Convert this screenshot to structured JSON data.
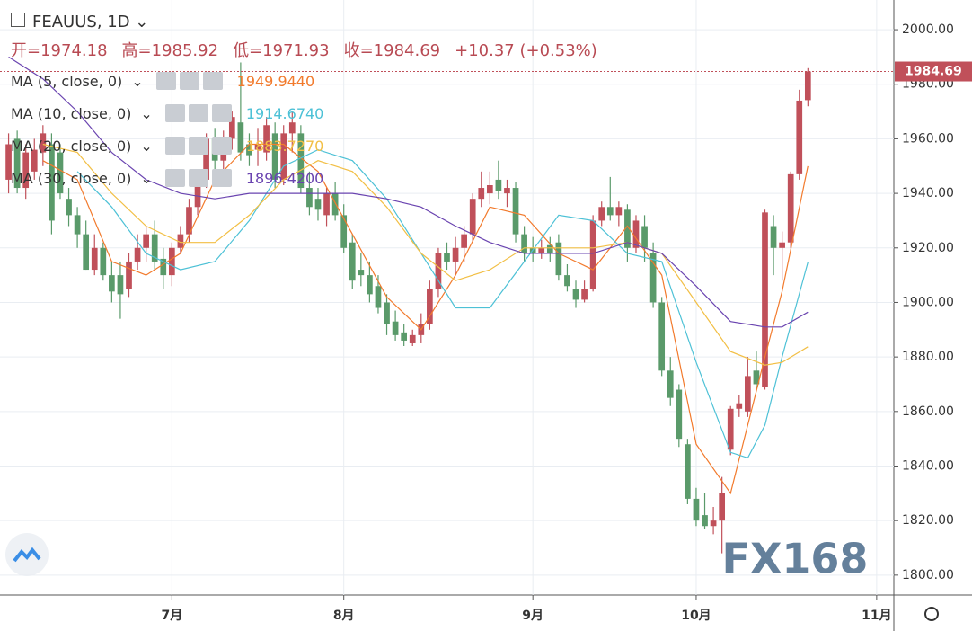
{
  "header": {
    "symbol": "FEAUUS, 1D",
    "ohlc": [
      "开=1974.18",
      "高=1985.92",
      "低=1971.93",
      "收=1984.69",
      "+10.37 (+0.53%)"
    ]
  },
  "watermark": "FX168",
  "chart_data": {
    "type": "candlestick",
    "open": [
      1945,
      1960,
      1942,
      1948,
      1955,
      1958,
      1955,
      1938,
      1932,
      1925,
      1912,
      1920,
      1910,
      1910,
      1905,
      1915,
      1920,
      1925,
      1916,
      1910,
      1920,
      1925,
      1935,
      1945,
      1960,
      1952,
      1960,
      1966,
      1958,
      1956,
      1955,
      1962,
      1945,
      1962,
      1962,
      1942,
      1938,
      1932,
      1940,
      1932,
      1922,
      1912,
      1910,
      1906,
      1900,
      1893,
      1889,
      1885,
      1888,
      1892,
      1905,
      1918,
      1915,
      1920,
      1925,
      1938,
      1940,
      1945,
      1940,
      1942,
      1925,
      1920,
      1918,
      1921,
      1922,
      1910,
      1905,
      1901,
      1905,
      1930,
      1935,
      1932,
      1934,
      1920,
      1928,
      1918,
      1900,
      1875,
      1868,
      1848,
      1828,
      1822,
      1818,
      1820,
      1846,
      1861,
      1860,
      1875,
      1869,
      1928,
      1920,
      1922,
      1947,
      1974.18
    ],
    "high": [
      1962,
      1963,
      1958,
      1960,
      1965,
      1962,
      1958,
      1942,
      1935,
      1930,
      1925,
      1922,
      1915,
      1915,
      1918,
      1925,
      1928,
      1930,
      1920,
      1922,
      1928,
      1938,
      1948,
      1962,
      1964,
      1963,
      1970,
      1988,
      1962,
      1964,
      1968,
      1966,
      1965,
      1970,
      1965,
      1948,
      1942,
      1942,
      1944,
      1936,
      1925,
      1918,
      1915,
      1910,
      1903,
      1897,
      1892,
      1890,
      1896,
      1908,
      1920,
      1922,
      1924,
      1928,
      1940,
      1948,
      1948,
      1952,
      1945,
      1944,
      1928,
      1924,
      1923,
      1924,
      1925,
      1914,
      1908,
      1908,
      1932,
      1937,
      1946,
      1937,
      1936,
      1932,
      1932,
      1922,
      1902,
      1880,
      1870,
      1850,
      1832,
      1830,
      1825,
      1836,
      1862,
      1866,
      1880,
      1882,
      1934,
      1932,
      1926,
      1948,
      1978,
      1985.92
    ],
    "low": [
      1940,
      1940,
      1938,
      1945,
      1950,
      1925,
      1938,
      1928,
      1920,
      1912,
      1910,
      1908,
      1900,
      1894,
      1902,
      1912,
      1915,
      1912,
      1905,
      1906,
      1918,
      1922,
      1932,
      1942,
      1948,
      1948,
      1956,
      1952,
      1950,
      1950,
      1952,
      1942,
      1943,
      1955,
      1940,
      1932,
      1930,
      1928,
      1930,
      1918,
      1905,
      1906,
      1900,
      1896,
      1888,
      1886,
      1884,
      1884,
      1885,
      1890,
      1902,
      1912,
      1910,
      1915,
      1922,
      1935,
      1936,
      1938,
      1935,
      1922,
      1915,
      1915,
      1916,
      1915,
      1908,
      1904,
      1898,
      1900,
      1904,
      1928,
      1930,
      1928,
      1915,
      1918,
      1915,
      1898,
      1873,
      1862,
      1847,
      1826,
      1818,
      1817,
      1815,
      1808,
      1844,
      1858,
      1858,
      1868,
      1868,
      1910,
      1908,
      1920,
      1945,
      1971.93
    ],
    "close": [
      1958,
      1942,
      1955,
      1956,
      1962,
      1930,
      1940,
      1932,
      1925,
      1912,
      1920,
      1910,
      1904,
      1903,
      1915,
      1920,
      1925,
      1915,
      1910,
      1920,
      1925,
      1935,
      1945,
      1960,
      1952,
      1960,
      1968,
      1955,
      1954,
      1958,
      1965,
      1945,
      1962,
      1966,
      1942,
      1935,
      1934,
      1940,
      1932,
      1920,
      1908,
      1910,
      1903,
      1898,
      1892,
      1888,
      1886,
      1888,
      1892,
      1905,
      1918,
      1915,
      1920,
      1925,
      1938,
      1942,
      1943,
      1941,
      1942,
      1925,
      1918,
      1918,
      1920,
      1918,
      1910,
      1906,
      1901,
      1905,
      1930,
      1935,
      1932,
      1935,
      1920,
      1930,
      1920,
      1900,
      1875,
      1865,
      1850,
      1828,
      1820,
      1818,
      1820,
      1830,
      1861,
      1863,
      1873,
      1870,
      1933,
      1920,
      1922,
      1947,
      1974,
      1984.69
    ],
    "up_color": "#c0505a",
    "down_color": "#5a9a6a",
    "last_price": 1984.69,
    "ma": [
      {
        "name": "MA (5, close, 0)",
        "color": "#f27a2c",
        "last_label": "1949.9440",
        "x": [
          4,
          8,
          12,
          16,
          20,
          24,
          28,
          32,
          36,
          40,
          44,
          48,
          52,
          56,
          60,
          64,
          68,
          72,
          76,
          80,
          84,
          88,
          90,
          93
        ],
        "values": [
          1952,
          1945,
          1915,
          1910,
          1918,
          1945,
          1958,
          1958,
          1948,
          1925,
          1902,
          1890,
          1910,
          1935,
          1932,
          1918,
          1912,
          1928,
          1910,
          1848,
          1830,
          1880,
          1904,
          1949.944
        ]
      },
      {
        "name": "MA (10, close, 0)",
        "color": "#4dc1d6",
        "last_label": "1914.6740",
        "x": [
          8,
          12,
          16,
          20,
          24,
          28,
          32,
          36,
          40,
          44,
          48,
          52,
          56,
          60,
          64,
          68,
          72,
          76,
          80,
          84,
          86,
          88,
          90,
          93
        ],
        "values": [
          1948,
          1935,
          1918,
          1912,
          1915,
          1930,
          1950,
          1956,
          1952,
          1938,
          1918,
          1898,
          1898,
          1915,
          1932,
          1930,
          1918,
          1915,
          1878,
          1845,
          1843,
          1855,
          1880,
          1914.674
        ]
      },
      {
        "name": "MA (20, close, 0)",
        "color": "#f2bf45",
        "last_label": "1883.7270",
        "x": [
          4,
          8,
          12,
          16,
          20,
          24,
          28,
          32,
          36,
          40,
          44,
          48,
          52,
          56,
          60,
          64,
          68,
          72,
          76,
          80,
          84,
          88,
          90,
          93
        ],
        "values": [
          1958,
          1955,
          1940,
          1928,
          1922,
          1922,
          1932,
          1945,
          1952,
          1948,
          1935,
          1918,
          1908,
          1912,
          1920,
          1920,
          1920,
          1922,
          1918,
          1900,
          1882,
          1877,
          1878,
          1883.727
        ]
      },
      {
        "name": "MA (30, close, 0)",
        "color": "#6a44b0",
        "last_label": "1896.4200",
        "x": [
          0,
          4,
          8,
          12,
          16,
          20,
          24,
          28,
          32,
          36,
          40,
          44,
          48,
          52,
          56,
          60,
          64,
          68,
          72,
          76,
          80,
          84,
          88,
          90,
          93
        ],
        "values": [
          1990,
          1982,
          1970,
          1955,
          1945,
          1940,
          1938,
          1940,
          1940,
          1940,
          1940,
          1938,
          1935,
          1928,
          1922,
          1918,
          1918,
          1918,
          1922,
          1918,
          1906,
          1893,
          1891,
          1891,
          1896.42
        ]
      }
    ],
    "xlim": [
      -1,
      103
    ],
    "xticks": [
      {
        "value": 19,
        "label": "7月"
      },
      {
        "value": 39,
        "label": "8月"
      },
      {
        "value": 61,
        "label": "9月"
      },
      {
        "value": 80,
        "label": "10月"
      },
      {
        "value": 101,
        "label": "11月"
      }
    ],
    "ylim": [
      1792.7,
      2010.9
    ],
    "yticks": [
      {
        "value": 1800,
        "label": "1800.00"
      },
      {
        "value": 1820,
        "label": "1820.00"
      },
      {
        "value": 1840,
        "label": "1840.00"
      },
      {
        "value": 1860,
        "label": "1860.00"
      },
      {
        "value": 1880,
        "label": "1880.00"
      },
      {
        "value": 1900,
        "label": "1900.00"
      },
      {
        "value": 1920,
        "label": "1920.00"
      },
      {
        "value": 1940,
        "label": "1940.00"
      },
      {
        "value": 1960,
        "label": "1960.00"
      },
      {
        "value": 1980,
        "label": "1980.00"
      },
      {
        "value": 2000,
        "label": "2000.00"
      }
    ],
    "grid": true
  }
}
